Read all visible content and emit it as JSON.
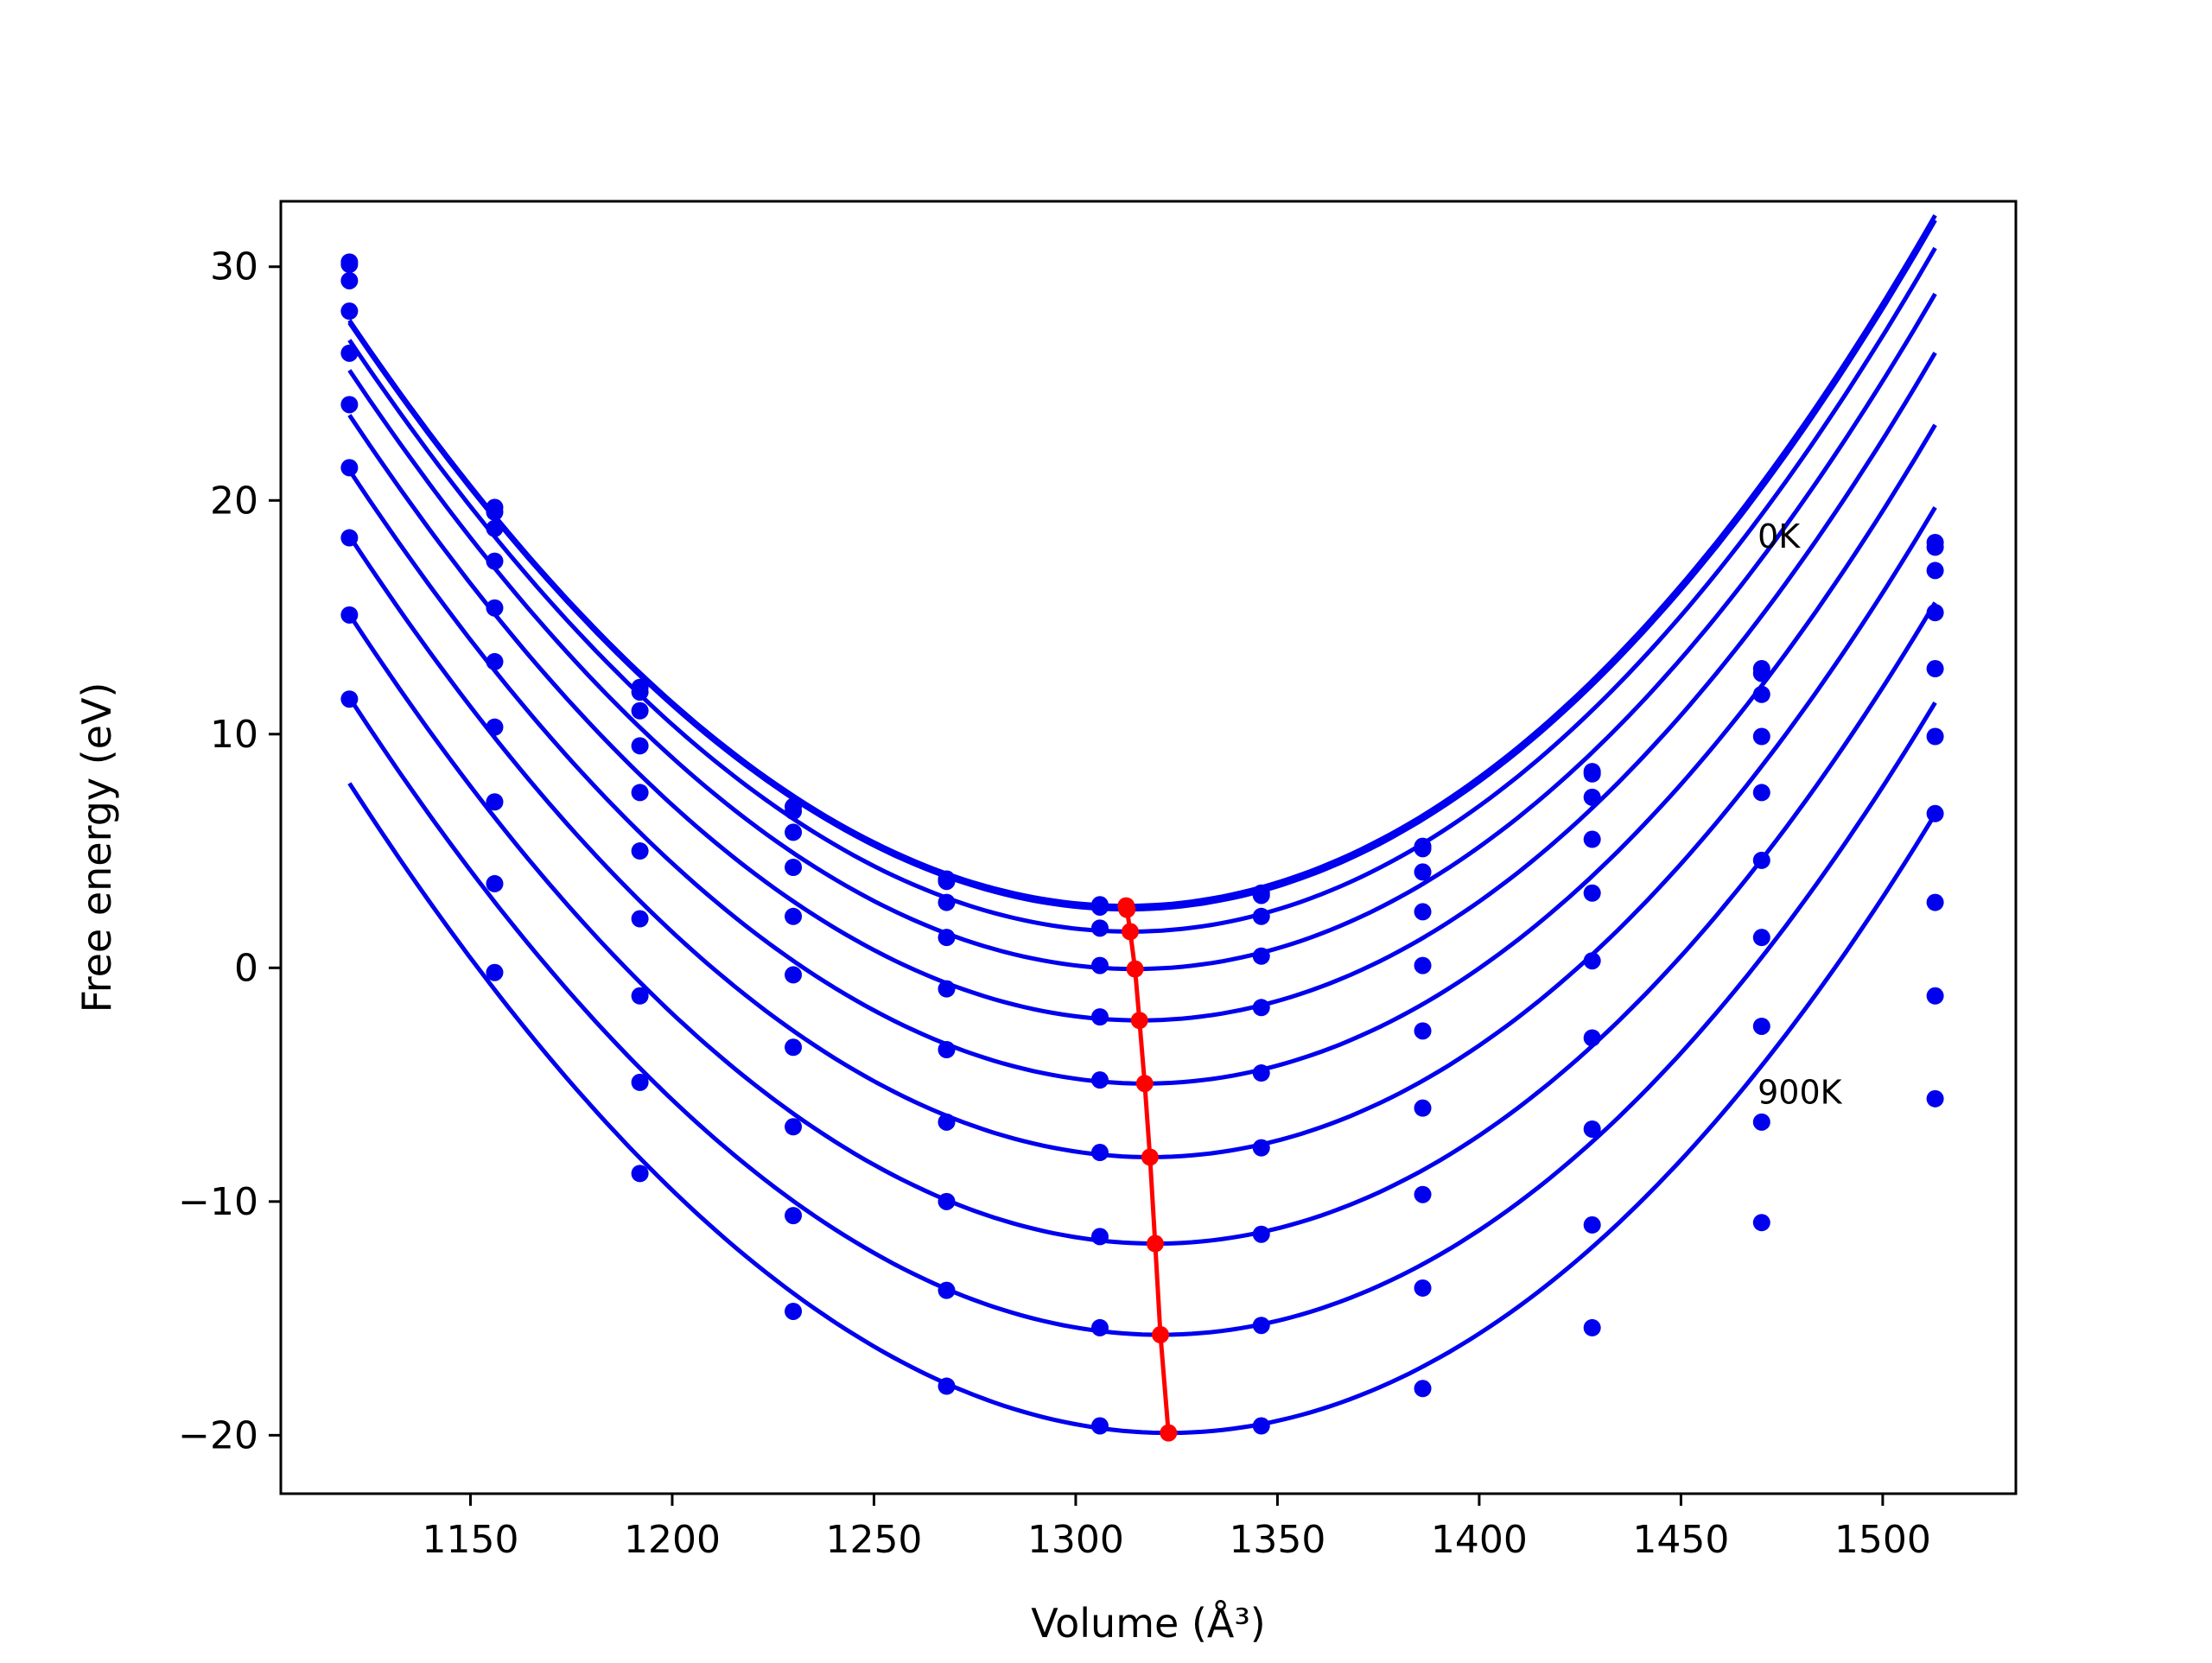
{
  "chart_data": {
    "type": "line",
    "title": "",
    "xlabel": "Volume (Å³)",
    "ylabel": "Free energy (eV)",
    "xlim": [
      1103,
      1533
    ],
    "ylim": [
      -22.5,
      32.8
    ],
    "xticks": [
      1150,
      1200,
      1250,
      1300,
      1350,
      1400,
      1450,
      1500
    ],
    "yticks": [
      -20,
      -10,
      0,
      10,
      20,
      30
    ],
    "grid": false,
    "legend": "none",
    "colors": {
      "curves": "#0000ee",
      "minimum_line": "#ff0000",
      "axes": "#000000"
    },
    "annotations": [
      {
        "text": "0K",
        "x": 1469,
        "y": 18.5
      },
      {
        "text": "900K",
        "x": 1469,
        "y": -5.3
      }
    ],
    "volumes": [
      1120,
      1156,
      1192,
      1230,
      1268,
      1306,
      1346,
      1386,
      1428,
      1470,
      1513
    ],
    "series": [
      {
        "values": [
          30.2,
          19.7,
          12.0,
          6.9,
          3.8,
          2.7,
          3.2,
          5.2,
          8.4,
          12.8,
          18.2
        ],
        "fit": {
          "v0": 1312.5,
          "e0": 2.65,
          "a": 0.000705,
          "b": 1.5e-07
        }
      },
      {
        "values": [
          30.1,
          19.5,
          11.8,
          6.7,
          3.7,
          2.6,
          3.1,
          5.1,
          8.3,
          12.6,
          18.0
        ],
        "fit": {
          "v0": 1312.7,
          "e0": 2.5,
          "a": 0.000705,
          "b": 1.5e-07
        }
      },
      {
        "values": [
          29.4,
          18.8,
          11.0,
          5.8,
          2.8,
          1.7,
          2.2,
          4.1,
          7.3,
          11.7,
          17.0
        ],
        "fit": {
          "v0": 1313.5,
          "e0": 1.55,
          "a": 0.000705,
          "b": 1.5e-07
        }
      },
      {
        "values": [
          28.1,
          17.4,
          9.5,
          4.3,
          1.3,
          0.1,
          0.5,
          2.4,
          5.5,
          9.9,
          15.2
        ],
        "fit": {
          "v0": 1314.7,
          "e0": -0.05,
          "a": 0.000705,
          "b": 1.5e-07
        }
      },
      {
        "values": [
          26.3,
          15.4,
          7.5,
          2.2,
          -0.9,
          -2.1,
          -1.7,
          0.1,
          3.2,
          7.5,
          12.8
        ],
        "fit": {
          "v0": 1315.8,
          "e0": -2.25,
          "a": 0.000705,
          "b": 1.5e-07
        }
      },
      {
        "values": [
          24.1,
          13.1,
          5.0,
          -0.3,
          -3.5,
          -4.8,
          -4.5,
          -2.7,
          0.3,
          4.6,
          9.9
        ],
        "fit": {
          "v0": 1317.1,
          "e0": -4.95,
          "a": 0.000705,
          "b": 1.5e-07
        }
      },
      {
        "values": [
          21.4,
          10.3,
          2.1,
          -3.4,
          -6.6,
          -7.9,
          -7.7,
          -6.0,
          -3.0,
          1.3,
          6.6
        ],
        "fit": {
          "v0": 1318.4,
          "e0": -8.1,
          "a": 0.000705,
          "b": 1.5e-07
        }
      },
      {
        "values": [
          18.4,
          7.1,
          -1.2,
          -6.8,
          -10.0,
          -11.5,
          -11.4,
          -9.7,
          -6.9,
          -2.5,
          2.8
        ],
        "fit": {
          "v0": 1319.7,
          "e0": -11.8,
          "a": 0.000705,
          "b": 1.5e-07
        }
      },
      {
        "values": [
          15.1,
          3.6,
          -4.9,
          -10.6,
          -13.8,
          -15.4,
          -15.3,
          -13.7,
          -11.0,
          -6.6,
          -1.2
        ],
        "fit": {
          "v0": 1321.0,
          "e0": -15.7,
          "a": 0.000705,
          "b": 1.5e-07
        }
      },
      {
        "values": [
          11.5,
          -0.2,
          -8.8,
          -14.7,
          -17.9,
          -19.6,
          -19.6,
          -18.0,
          -15.4,
          -10.9,
          -5.6
        ],
        "fit": {
          "v0": 1323.0,
          "e0": -19.9,
          "a": 0.000705,
          "b": 1.5e-07
        }
      }
    ],
    "minimum_line": {
      "x": [
        1312.5,
        1312.7,
        1313.5,
        1314.7,
        1315.8,
        1317.1,
        1318.4,
        1319.7,
        1321.0,
        1323.0
      ],
      "y": [
        2.65,
        2.5,
        1.55,
        -0.05,
        -2.25,
        -4.95,
        -8.1,
        -11.8,
        -15.7,
        -19.9
      ]
    }
  }
}
